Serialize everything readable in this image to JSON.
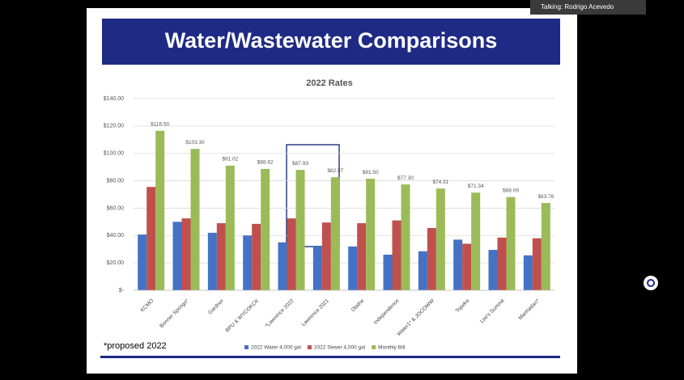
{
  "status": {
    "talking": "Talking: Rodrigo Acevedo"
  },
  "slide_title": "Water/Wastewater Comparisons",
  "footnote": "*proposed 2022",
  "chart_data": {
    "type": "bar",
    "title": "2022 Rates",
    "categories": [
      "KCMO",
      "Bonner Springs*",
      "Gardner",
      "BPU & WYCOKCK",
      "*Lawrence 2022",
      "Lawrence 2021",
      "Olathe",
      "Independence",
      "Water1* & JOCOWW",
      "Topeka",
      "Lee's Summit",
      "Manhattan*"
    ],
    "series": [
      {
        "name": "2022 Water 4,000 gal",
        "color": "#4472c4",
        "values": [
          40.7,
          50,
          42,
          40,
          35,
          32.5,
          32,
          26,
          28.5,
          37,
          29.5,
          25.5
        ]
      },
      {
        "name": "2022 Sewer 4,000 gal",
        "color": "#c0504d",
        "values": [
          75.5,
          52.5,
          49,
          48.5,
          52.5,
          49.5,
          49,
          51,
          45.5,
          34,
          38.5,
          38
        ]
      },
      {
        "name": "Monthly Bill",
        "color": "#9bbb59",
        "values": [
          116.5,
          103.3,
          91.02,
          88.62,
          87.93,
          82.57,
          81.5,
          77.3,
          74.31,
          71.34,
          68.09,
          63.76
        ],
        "value_labels": [
          "$116.50",
          "$103.30",
          "$91.02",
          "$88.62",
          "$87.93",
          "$82.57",
          "$81.50",
          "$77.30",
          "$74.31",
          "$71.34",
          "$68.09",
          "$63.76"
        ]
      }
    ],
    "ylim": [
      0,
      140
    ],
    "yticks": [
      {
        "value": 0,
        "label": "$-"
      },
      {
        "value": 20,
        "label": "$20.00"
      },
      {
        "value": 40,
        "label": "$40.00"
      },
      {
        "value": 60,
        "label": "$60.00"
      },
      {
        "value": 80,
        "label": "$80.00"
      },
      {
        "value": 100,
        "label": "$100.00"
      },
      {
        "value": 120,
        "label": "$120.00"
      },
      {
        "value": 140,
        "label": "$140.00"
      }
    ],
    "grid": true,
    "legend": "bottom"
  }
}
